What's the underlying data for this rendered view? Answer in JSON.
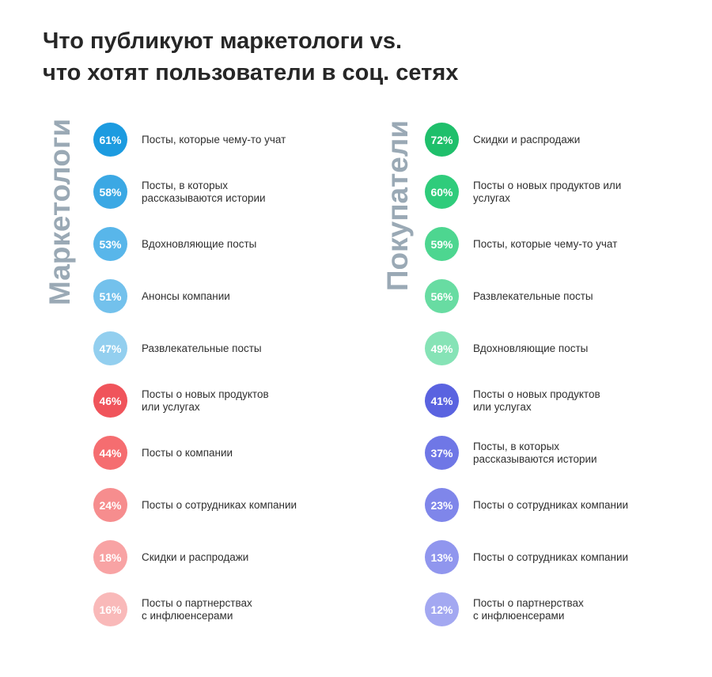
{
  "title_line1": "Что публикуют маркетологи vs.",
  "title_line2": "что хотят пользователи в соц. сетях",
  "chart_data": [
    {
      "type": "table",
      "group_label": "Маркетологи",
      "categories": [
        "Посты, которые чему-то учат",
        "Посты, в которых\nрассказываются истории",
        "Вдохновляющие посты",
        "Анонсы компании",
        "Развлекательные посты",
        "Посты о новых продуктов\nили услугах",
        "Посты о компании",
        "Посты о сотрудниках компании",
        "Скидки и распродажи",
        "Посты о партнерствах\nс инфлюенсерами"
      ],
      "values": [
        61,
        58,
        53,
        51,
        47,
        46,
        44,
        24,
        18,
        16
      ],
      "value_labels": [
        "61%",
        "58%",
        "53%",
        "51%",
        "47%",
        "46%",
        "44%",
        "24%",
        "18%",
        "16%"
      ],
      "colors": [
        "#1c9be0",
        "#3ba8e4",
        "#58b6ea",
        "#73c1ec",
        "#93cfef",
        "#f0545b",
        "#f56d70",
        "#f68d8e",
        "#f8a3a4",
        "#f9b9b9"
      ]
    },
    {
      "type": "table",
      "group_label": "Покупатели",
      "categories": [
        "Скидки и распродажи",
        "Посты о новых продуктов или\nуслугах",
        "Посты, которые чему-то учат",
        "Развлекательные посты",
        "Вдохновляющие посты",
        "Посты о новых продуктов\nили услугах",
        "Посты, в которых\nрассказываются истории",
        "Посты о сотрудниках компании",
        "Посты о сотрудниках компании",
        "Посты о партнерствах\nс инфлюенсерами"
      ],
      "values": [
        72,
        60,
        59,
        56,
        49,
        41,
        37,
        23,
        13,
        12
      ],
      "value_labels": [
        "72%",
        "60%",
        "59%",
        "56%",
        "49%",
        "41%",
        "37%",
        "23%",
        "13%",
        "12%"
      ],
      "colors": [
        "#1fbf6b",
        "#2fcc7b",
        "#4dd690",
        "#68dca2",
        "#86e3b6",
        "#5a63e0",
        "#6f77e6",
        "#7f86ea",
        "#9096ee",
        "#a3a8f1"
      ]
    }
  ]
}
